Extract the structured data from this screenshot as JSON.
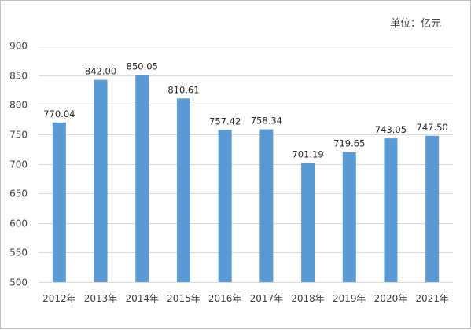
{
  "chart_data": {
    "type": "bar",
    "unit_label": "单位：亿元",
    "categories": [
      "2012年",
      "2013年",
      "2014年",
      "2015年",
      "2016年",
      "2017年",
      "2018年",
      "2019年",
      "2020年",
      "2021年"
    ],
    "series": [
      {
        "values": [
          770.04,
          842.0,
          850.05,
          810.61,
          757.42,
          758.34,
          701.19,
          719.65,
          743.05,
          747.5
        ],
        "value_labels": [
          "770.04",
          "842.00",
          "850.05",
          "810.61",
          "757.42",
          "758.34",
          "701.19",
          "719.65",
          "743.05",
          "747.50"
        ],
        "color": "#5b9bd5"
      }
    ],
    "ylim": [
      500,
      900
    ],
    "yticks": [
      500,
      550,
      600,
      650,
      700,
      750,
      800,
      850,
      900
    ],
    "grid": true,
    "legend": "none"
  }
}
